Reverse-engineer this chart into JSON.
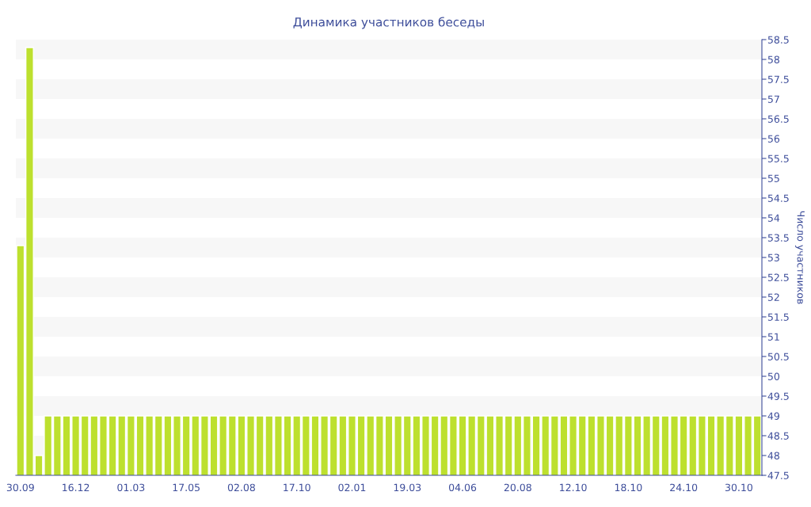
{
  "chart_data": {
    "type": "bar",
    "title": "Динамика участников беседы",
    "ylabel": "Число участников",
    "categories": [
      "30.09",
      null,
      null,
      null,
      null,
      null,
      "16.12",
      null,
      null,
      null,
      null,
      null,
      "01.03",
      null,
      null,
      null,
      null,
      null,
      "17.05",
      null,
      null,
      null,
      null,
      null,
      "02.08",
      null,
      null,
      null,
      null,
      null,
      "17.10",
      null,
      null,
      null,
      null,
      null,
      "02.01",
      null,
      null,
      null,
      null,
      null,
      "19.03",
      null,
      null,
      null,
      null,
      null,
      "04.06",
      null,
      null,
      null,
      null,
      null,
      "20.08",
      null,
      null,
      null,
      null,
      null,
      "12.10",
      null,
      null,
      null,
      null,
      null,
      "18.10",
      null,
      null,
      null,
      null,
      null,
      "24.10",
      null,
      null,
      null,
      null,
      null,
      "30.10",
      null,
      null
    ],
    "values": [
      53.3,
      58.3,
      48,
      49,
      49,
      49,
      49,
      49,
      49,
      49,
      49,
      49,
      49,
      49,
      49,
      49,
      49,
      49,
      49,
      49,
      49,
      49,
      49,
      49,
      49,
      49,
      49,
      49,
      49,
      49,
      49,
      49,
      49,
      49,
      49,
      49,
      49,
      49,
      49,
      49,
      49,
      49,
      49,
      49,
      49,
      49,
      49,
      49,
      49,
      49,
      49,
      49,
      49,
      49,
      49,
      49,
      49,
      49,
      49,
      49,
      49,
      49,
      49,
      49,
      49,
      49,
      49,
      49,
      49,
      49,
      49,
      49,
      49,
      49,
      49,
      49,
      49,
      49,
      49,
      49,
      49
    ],
    "color": "#bde02e",
    "ylim": [
      47.5,
      58.5
    ],
    "yticks": [
      47.5,
      48,
      48.5,
      49,
      49.5,
      50,
      50.5,
      51,
      51.5,
      52,
      52.5,
      53,
      53.5,
      54,
      54.5,
      55,
      55.5,
      56,
      56.5,
      57,
      57.5,
      58,
      58.5
    ],
    "bands": [
      {
        "axis": "y",
        "from": 48,
        "to": 48.5,
        "color": "#f7f7f7"
      },
      {
        "axis": "y",
        "from": 49,
        "to": 49.5,
        "color": "#f7f7f7"
      },
      {
        "axis": "y",
        "from": 50,
        "to": 50.5,
        "color": "#f7f7f7"
      },
      {
        "axis": "y",
        "from": 51,
        "to": 51.5,
        "color": "#f7f7f7"
      },
      {
        "axis": "y",
        "from": 52,
        "to": 52.5,
        "color": "#f7f7f7"
      },
      {
        "axis": "y",
        "from": 53,
        "to": 53.5,
        "color": "#f7f7f7"
      },
      {
        "axis": "y",
        "from": 54,
        "to": 54.5,
        "color": "#f7f7f7"
      },
      {
        "axis": "y",
        "from": 55,
        "to": 55.5,
        "color": "#f7f7f7"
      },
      {
        "axis": "y",
        "from": 56,
        "to": 56.5,
        "color": "#f7f7f7"
      },
      {
        "axis": "y",
        "from": 57,
        "to": 57.5,
        "color": "#f7f7f7"
      },
      {
        "axis": "y",
        "from": 58,
        "to": 58.5,
        "color": "#f7f7f7"
      }
    ]
  }
}
